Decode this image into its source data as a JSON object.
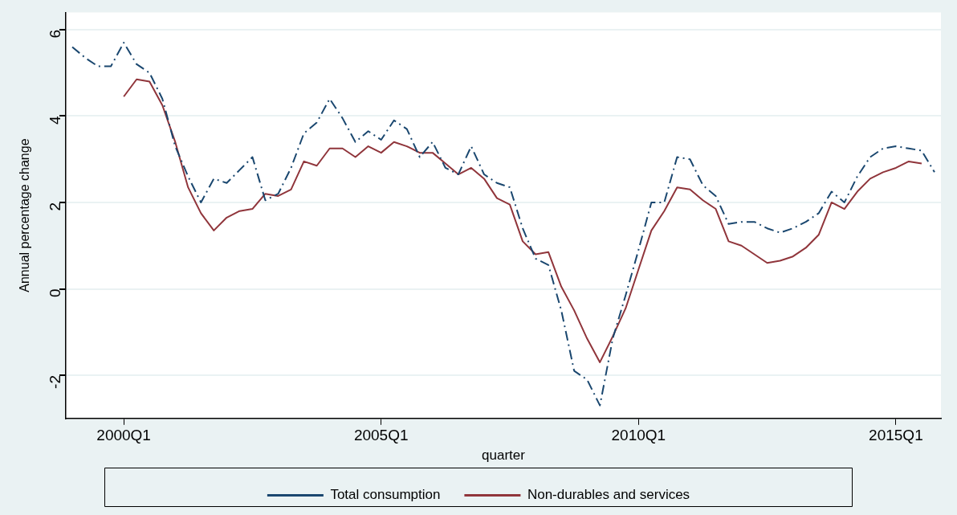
{
  "chart_data": {
    "type": "line",
    "xlabel": "quarter",
    "ylabel": "Annual percentage change",
    "categories": [
      null,
      null,
      null,
      null,
      "2000Q1",
      null,
      null,
      null,
      null,
      null,
      null,
      null,
      null,
      null,
      null,
      null,
      null,
      null,
      null,
      null,
      null,
      null,
      null,
      null,
      "2005Q1",
      null,
      null,
      null,
      null,
      null,
      null,
      null,
      null,
      null,
      null,
      null,
      null,
      null,
      null,
      null,
      null,
      null,
      null,
      null,
      "2010Q1",
      null,
      null,
      null,
      null,
      null,
      null,
      null,
      null,
      null,
      null,
      null,
      null,
      null,
      null,
      null,
      null,
      null,
      null,
      null,
      "2015Q1",
      null,
      null,
      null
    ],
    "ylim": [
      -3,
      6.4
    ],
    "yticks": [
      -2,
      0,
      2,
      4,
      6
    ],
    "grid": "y",
    "legend": "bottom",
    "marker": "none",
    "series": [
      {
        "name": "Total consumption",
        "color": "#1a476f",
        "line_style": "dashdot",
        "values": [
          5.6,
          5.35,
          5.15,
          5.15,
          5.7,
          5.2,
          5.0,
          4.4,
          3.3,
          2.6,
          2.0,
          2.55,
          2.45,
          2.75,
          3.05,
          2.05,
          2.2,
          2.8,
          3.6,
          3.85,
          4.4,
          3.95,
          3.4,
          3.65,
          3.45,
          3.9,
          3.7,
          3.05,
          3.4,
          2.8,
          2.65,
          3.3,
          2.65,
          2.45,
          2.35,
          1.4,
          0.7,
          0.55,
          -0.5,
          -1.9,
          -2.1,
          -2.7,
          -1.15,
          -0.15,
          0.9,
          2.0,
          2.0,
          3.05,
          3.0,
          2.4,
          2.15,
          1.5,
          1.55,
          1.55,
          1.4,
          1.3,
          1.4,
          1.55,
          1.75,
          2.25,
          2.0,
          2.6,
          3.05,
          3.25,
          3.3,
          3.25,
          3.2,
          2.7
        ]
      },
      {
        "name": "Non-durables and services",
        "color": "#90353b",
        "line_style": "solid",
        "values": [
          null,
          null,
          null,
          null,
          4.45,
          4.85,
          4.8,
          4.25,
          3.4,
          2.35,
          1.75,
          1.35,
          1.65,
          1.8,
          1.85,
          2.2,
          2.15,
          2.3,
          2.95,
          2.85,
          3.25,
          3.25,
          3.05,
          3.3,
          3.15,
          3.4,
          3.3,
          3.15,
          3.15,
          2.9,
          2.65,
          2.8,
          2.55,
          2.1,
          1.95,
          1.1,
          0.8,
          0.85,
          0.05,
          -0.5,
          -1.15,
          -1.7,
          -1.1,
          -0.45,
          0.45,
          1.35,
          1.8,
          2.35,
          2.3,
          2.05,
          1.85,
          1.1,
          1.0,
          0.8,
          0.6,
          0.65,
          0.75,
          0.95,
          1.25,
          2.0,
          1.85,
          2.25,
          2.55,
          2.7,
          2.8,
          2.95,
          2.9,
          null
        ]
      }
    ]
  }
}
